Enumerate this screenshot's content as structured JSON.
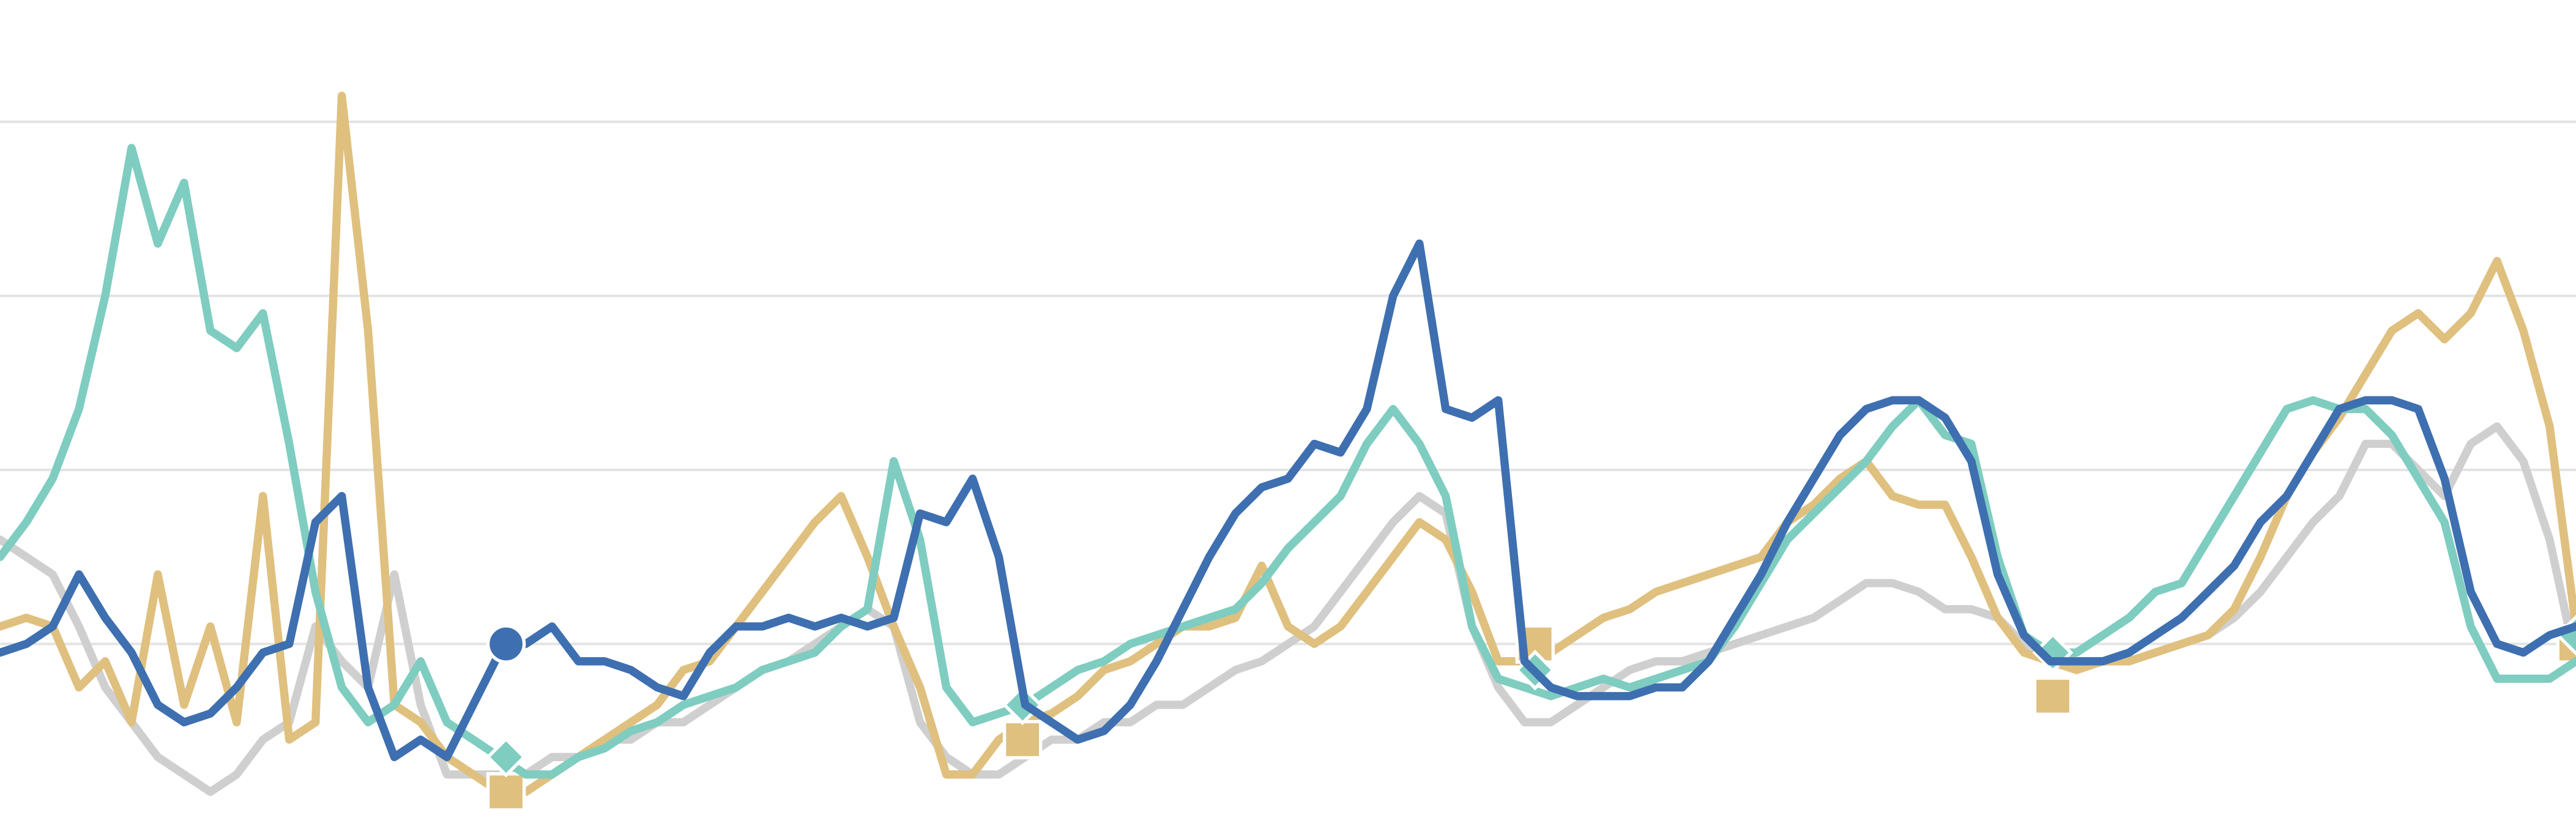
{
  "chart_data": {
    "type": "line",
    "xlim": [
      0,
      98
    ],
    "ylim": [
      0,
      94
    ],
    "yticks": [
      20,
      40,
      60,
      80
    ],
    "grid": true,
    "series": [
      {
        "color": "#cfcfcf",
        "values": [
          32,
          30,
          28,
          22,
          15,
          11,
          7,
          5,
          3,
          5,
          9,
          11,
          22,
          18,
          15,
          28,
          13,
          5,
          5,
          5,
          5,
          7,
          7,
          9,
          9,
          11,
          11,
          13,
          15,
          17,
          18,
          20,
          22,
          24,
          22,
          11,
          7,
          5,
          5,
          7,
          9,
          9,
          11,
          11,
          13,
          13,
          15,
          17,
          18,
          20,
          22,
          26,
          30,
          34,
          37,
          35,
          22,
          15,
          11,
          11,
          13,
          15,
          17,
          18,
          18,
          19,
          20,
          21,
          22,
          23,
          25,
          27,
          27,
          26,
          24,
          24,
          23,
          20,
          19,
          18,
          18,
          18,
          19,
          20,
          21,
          23,
          26,
          30,
          34,
          37,
          43,
          43,
          40,
          37,
          43,
          45,
          41,
          32,
          18
        ]
      },
      {
        "color": "#dfc07e",
        "marker": "square",
        "markers": [
          {
            "x": 19.25,
            "y": 3
          },
          {
            "x": 38.9,
            "y": 9
          },
          {
            "x": 58.4,
            "y": 20
          },
          {
            "x": 78.1,
            "y": 14
          },
          {
            "x": 98,
            "y": 20
          }
        ],
        "values": [
          22,
          23,
          22,
          15,
          18,
          11,
          28,
          13,
          22,
          11,
          37,
          9,
          11,
          83,
          56,
          13,
          11,
          7,
          5,
          3,
          3,
          5,
          7,
          9,
          11,
          13,
          17,
          18,
          22,
          26,
          30,
          34,
          37,
          30,
          22,
          15,
          5,
          5,
          9,
          11,
          12,
          14,
          17,
          18,
          20,
          22,
          22,
          23,
          29,
          22,
          20,
          22,
          26,
          30,
          34,
          32,
          26,
          18,
          18,
          19,
          21,
          23,
          24,
          26,
          27,
          28,
          29,
          30,
          34,
          36,
          39,
          41,
          37,
          36,
          36,
          30,
          23,
          19,
          18,
          17,
          18,
          18,
          19,
          20,
          21,
          24,
          30,
          37,
          42,
          46,
          51,
          56,
          58,
          55,
          58,
          64,
          56,
          45,
          22
        ]
      },
      {
        "color": "#7ecdc0",
        "marker": "diamond",
        "markers": [
          {
            "x": 19.25,
            "y": 7
          },
          {
            "x": 38.9,
            "y": 13
          },
          {
            "x": 58.4,
            "y": 17
          },
          {
            "x": 78.1,
            "y": 19
          },
          {
            "x": 98,
            "y": 21
          }
        ],
        "values": [
          30,
          34,
          39,
          47,
          60,
          77,
          66,
          73,
          56,
          54,
          58,
          43,
          26,
          15,
          11,
          13,
          18,
          11,
          9,
          7,
          5,
          5,
          7,
          8,
          10,
          11,
          13,
          14,
          15,
          17,
          18,
          19,
          22,
          24,
          41,
          32,
          15,
          11,
          12,
          13,
          15,
          17,
          18,
          20,
          21,
          22,
          23,
          24,
          27,
          31,
          34,
          37,
          43,
          47,
          43,
          37,
          22,
          16,
          15,
          14,
          15,
          16,
          15,
          16,
          17,
          18,
          22,
          27,
          32,
          35,
          38,
          41,
          45,
          48,
          44,
          43,
          30,
          21,
          19,
          19,
          21,
          23,
          26,
          27,
          32,
          37,
          42,
          47,
          48,
          47,
          47,
          44,
          39,
          34,
          22,
          16,
          16,
          16,
          18
        ]
      },
      {
        "color": "#3e6fb0",
        "marker": "circle",
        "markers": [
          {
            "x": 19.25,
            "y": 20
          }
        ],
        "values": [
          19,
          20,
          22,
          28,
          23,
          19,
          13,
          11,
          12,
          15,
          19,
          20,
          34,
          37,
          15,
          7,
          9,
          7,
          13,
          19,
          20,
          22,
          18,
          18,
          17,
          15,
          14,
          19,
          22,
          22,
          23,
          22,
          23,
          22,
          23,
          35,
          34,
          39,
          30,
          13,
          11,
          9,
          10,
          13,
          18,
          24,
          30,
          35,
          38,
          39,
          43,
          42,
          47,
          60,
          66,
          47,
          46,
          48,
          18,
          15,
          14,
          14,
          14,
          15,
          15,
          18,
          23,
          28,
          34,
          39,
          44,
          47,
          48,
          48,
          46,
          41,
          28,
          21,
          18,
          18,
          18,
          19,
          21,
          23,
          26,
          29,
          34,
          37,
          42,
          47,
          48,
          48,
          47,
          39,
          26,
          20,
          19,
          21,
          22
        ]
      }
    ]
  }
}
